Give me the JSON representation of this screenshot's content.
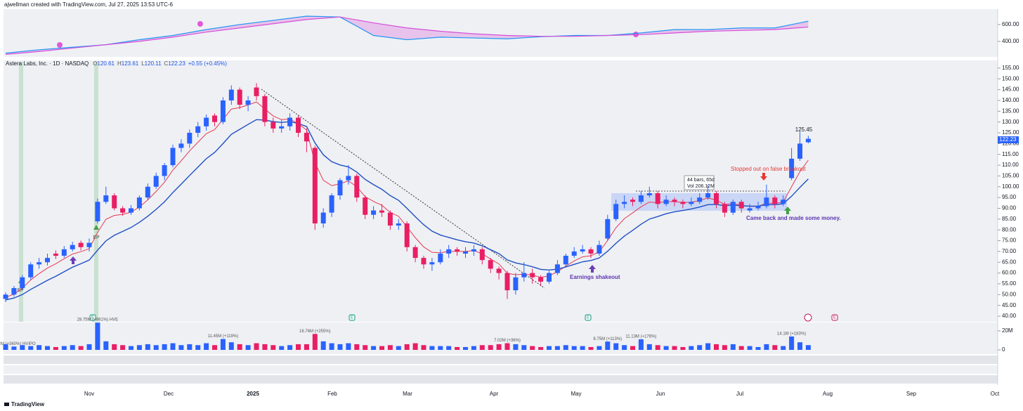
{
  "header": {
    "credit": "ajwellman created with TradingView.com, Jul 27, 2025 13:53 UTC-6",
    "legend": [
      "O",
      "120.61",
      "H",
      "123.61",
      "L",
      "120.11",
      "C",
      "122.23",
      "+0.55 (+0.45%)"
    ]
  },
  "footer": {
    "logo": "TradingView"
  },
  "chart_data": [
    {
      "type": "line",
      "series": [
        {
          "color": "#2196f3",
          "values": [
            260,
            300,
            330,
            360,
            420,
            470,
            540,
            600,
            650,
            700,
            690,
            470,
            420,
            450,
            440,
            430,
            455,
            470,
            470,
            500,
            540,
            540,
            560,
            560,
            640
          ]
        },
        {
          "color": "#d64fd8",
          "values": [
            245,
            280,
            320,
            360,
            400,
            450,
            510,
            560,
            610,
            660,
            690,
            620,
            560,
            520,
            490,
            470,
            460,
            460,
            470,
            480,
            500,
            520,
            530,
            540,
            570
          ]
        }
      ],
      "ylim": [
        240,
        775
      ],
      "yticks": [
        {
          "value": 600,
          "label": "600.00"
        },
        {
          "value": 400,
          "label": "400.00"
        }
      ]
    },
    {
      "type": "candlestick",
      "title": "Astera Labs, Inc. · 1D · NASDAQ",
      "colors": {
        "up": "#2962ff",
        "down": "#e91e63"
      },
      "ohlc": [
        [
          48,
          51,
          46.5,
          50
        ],
        [
          50,
          54,
          49,
          53
        ],
        [
          53,
          59,
          52,
          58
        ],
        [
          58,
          65,
          57,
          64
        ],
        [
          64,
          67,
          62,
          65
        ],
        [
          65,
          69,
          63.5,
          67
        ],
        [
          69,
          70.5,
          66.5,
          68
        ],
        [
          68,
          72.5,
          67,
          71
        ],
        [
          71,
          74.5,
          70,
          73
        ],
        [
          74,
          75,
          70.5,
          72
        ],
        [
          72,
          76,
          70,
          74
        ],
        [
          84,
          94.5,
          83,
          93
        ],
        [
          93,
          100,
          92,
          96
        ],
        [
          96,
          97,
          89,
          90
        ],
        [
          90,
          91,
          86.5,
          88
        ],
        [
          88,
          91.5,
          87,
          90
        ],
        [
          90,
          96,
          89,
          95
        ],
        [
          95,
          101.5,
          94,
          100
        ],
        [
          100,
          106.5,
          99,
          105
        ],
        [
          105,
          111,
          103,
          110
        ],
        [
          110,
          119.5,
          109,
          118
        ],
        [
          118,
          122,
          116,
          120
        ],
        [
          120,
          126.5,
          118,
          125
        ],
        [
          125,
          130,
          123,
          128
        ],
        [
          128,
          133.5,
          126,
          132
        ],
        [
          133,
          134,
          128,
          130
        ],
        [
          130,
          141.5,
          129,
          140
        ],
        [
          140,
          147,
          138,
          145
        ],
        [
          145,
          146,
          136,
          138
        ],
        [
          138,
          142,
          135,
          140
        ],
        [
          146,
          148,
          140,
          142
        ],
        [
          142,
          143,
          128,
          130
        ],
        [
          130,
          132,
          125,
          127
        ],
        [
          127,
          131,
          125,
          128
        ],
        [
          128,
          134,
          126,
          132
        ],
        [
          132,
          133,
          123,
          125
        ],
        [
          125,
          127,
          116,
          121
        ],
        [
          118,
          119,
          80,
          83
        ],
        [
          83,
          90,
          81,
          88
        ],
        [
          88,
          97,
          86,
          96
        ],
        [
          96,
          104,
          94,
          103
        ],
        [
          103,
          110,
          101,
          105
        ],
        [
          105,
          106,
          93,
          95
        ],
        [
          95,
          96,
          85,
          87
        ],
        [
          87,
          91,
          85,
          89
        ],
        [
          89,
          92,
          86,
          88
        ],
        [
          88,
          89,
          80,
          82
        ],
        [
          82,
          85,
          80,
          83
        ],
        [
          83,
          84,
          70,
          72
        ],
        [
          72,
          73,
          65,
          67
        ],
        [
          67,
          68,
          62,
          64
        ],
        [
          64,
          67,
          61,
          65
        ],
        [
          65,
          71,
          64,
          69
        ],
        [
          69,
          73,
          67,
          71
        ],
        [
          71,
          72,
          68,
          70
        ],
        [
          69,
          72,
          67,
          70
        ],
        [
          70,
          73,
          68,
          71
        ],
        [
          71,
          72,
          64,
          66
        ],
        [
          66,
          67,
          60,
          62
        ],
        [
          62,
          63,
          57,
          60
        ],
        [
          60,
          61,
          48,
          52
        ],
        [
          52,
          60,
          50,
          58
        ],
        [
          58,
          65,
          56,
          60
        ],
        [
          60,
          62,
          55,
          58
        ],
        [
          58,
          59,
          54,
          56
        ],
        [
          56,
          61,
          55,
          60
        ],
        [
          60,
          66,
          59,
          64
        ],
        [
          64,
          69,
          63,
          68
        ],
        [
          68,
          72,
          67,
          70
        ],
        [
          70,
          73,
          69,
          71
        ],
        [
          71,
          72,
          67,
          69
        ],
        [
          69,
          75,
          68,
          73
        ],
        [
          76,
          87,
          75,
          85
        ],
        [
          85,
          94,
          84,
          92
        ],
        [
          92,
          96,
          90,
          93
        ],
        [
          94,
          95,
          91,
          93
        ],
        [
          93,
          98,
          92,
          96
        ],
        [
          96,
          100,
          95,
          97
        ],
        [
          97,
          98,
          90,
          92
        ],
        [
          92,
          96,
          91,
          94
        ],
        [
          94,
          95,
          91,
          93
        ],
        [
          93,
          94,
          90,
          92
        ],
        [
          92,
          95,
          91,
          93
        ],
        [
          93,
          97,
          92,
          95
        ],
        [
          95,
          101,
          94,
          97
        ],
        [
          97,
          98,
          90,
          92
        ],
        [
          92,
          93,
          86,
          88
        ],
        [
          88,
          94,
          87,
          93
        ],
        [
          93,
          94,
          88,
          90
        ],
        [
          89,
          92,
          88,
          90
        ],
        [
          90,
          93,
          89,
          91
        ],
        [
          91,
          101,
          90,
          95
        ],
        [
          95,
          96,
          90,
          92
        ],
        [
          92,
          96,
          91,
          94
        ],
        [
          104,
          118,
          103,
          113
        ],
        [
          113,
          125.45,
          112,
          120
        ],
        [
          120.61,
          123.61,
          120.11,
          122.23
        ]
      ],
      "lines": [
        {
          "color": "#e53950",
          "values": [
            48.7,
            50.2,
            52.9,
            56.8,
            59.7,
            62.3,
            64.3,
            66.6,
            68.8,
            69.9,
            71.3,
            78.9,
            84.9,
            86.7,
            87.2,
            88.2,
            90.6,
            93.9,
            97.8,
            102.1,
            107.7,
            112,
            116.6,
            120.6,
            124.6,
            126.5,
            131.2,
            136,
            136.7,
            137.9,
            139.3,
            136,
            132.8,
            131.1,
            131.4,
            129.2,
            126.3,
            111.1,
            103,
            100.5,
            101.4,
            102.7,
            100,
            95.4,
            93.2,
            91.4,
            88.1,
            86.3,
            81.4,
            76.4,
            72.1,
            69.6,
            69.4,
            70,
            70,
            70,
            70.4,
            68.9,
            66.5,
            64.2,
            59.9,
            59.2,
            59.5,
            59,
            58,
            58.7,
            60.6,
            63.2,
            65.6,
            67.5,
            68,
            69.8,
            75.1,
            81,
            85.2,
            87.9,
            90.7,
            92.9,
            92.6,
            93.1,
            93.1,
            92.7,
            92.8,
            93.6,
            94.8,
            93.8,
            91.8,
            92.2,
            91.4,
            90.9,
            90.9,
            92.4,
            92.3,
            92.9,
            100,
            107,
            112.3
          ]
        },
        {
          "color": "#1f4fc4",
          "values": [
            47.5,
            48.4,
            50,
            52.4,
            54.5,
            56.6,
            58.5,
            60.6,
            62.7,
            64.3,
            66,
            70.6,
            74.9,
            77.5,
            79.3,
            81.1,
            83.5,
            86.3,
            89.5,
            93,
            97.3,
            101.2,
            105.2,
            109.1,
            113,
            115.9,
            120,
            124.3,
            126.6,
            128.9,
            131.1,
            130.9,
            130.2,
            129.8,
            130.2,
            129.3,
            127.9,
            120.3,
            114.8,
            111.6,
            110.1,
            109.2,
            106.8,
            103.4,
            101,
            98.8,
            95.9,
            93.7,
            90,
            86.1,
            82.4,
            79.4,
            77.6,
            76.5,
            75.4,
            74.5,
            73.9,
            72.6,
            70.8,
            69,
            66.1,
            64.7,
            63.9,
            62.9,
            61.7,
            61.4,
            61.8,
            62.8,
            64,
            65.2,
            65.8,
            67,
            70.1,
            73.8,
            77.1,
            79.8,
            82.6,
            85,
            86.2,
            87.5,
            88.4,
            89,
            89.7,
            90.6,
            91.7,
            91.8,
            91.2,
            91.5,
            91.2,
            91,
            91,
            91.7,
            91.7,
            92.1,
            95.6,
            99.7,
            103.6
          ]
        }
      ],
      "ylim": [
        37.4,
        157.9
      ],
      "yticks": [
        {
          "value": 40,
          "label": "40.00"
        },
        {
          "value": 45,
          "label": "45.00"
        },
        {
          "value": 50,
          "label": "50.00"
        },
        {
          "value": 55,
          "label": "55.00"
        },
        {
          "value": 60,
          "label": "60.00"
        },
        {
          "value": 65,
          "label": "65.00"
        },
        {
          "value": 70,
          "label": "70.00"
        },
        {
          "value": 75,
          "label": "75.00"
        },
        {
          "value": 80,
          "label": "80.00"
        },
        {
          "value": 85,
          "label": "85.00"
        },
        {
          "value": 90,
          "label": "90.00"
        },
        {
          "value": 95,
          "label": "95.00"
        },
        {
          "value": 100,
          "label": "100.00"
        },
        {
          "value": 105,
          "label": "105.00"
        },
        {
          "value": 110,
          "label": "110.00"
        },
        {
          "value": 115,
          "label": "115.00"
        },
        {
          "value": 120,
          "label": "120.00"
        },
        {
          "value": 125,
          "label": "125.00"
        },
        {
          "value": 130,
          "label": "130.00"
        },
        {
          "value": 135,
          "label": "135.00"
        },
        {
          "value": 140,
          "label": "140.00"
        },
        {
          "value": 145,
          "label": "145.00"
        },
        {
          "value": 150,
          "label": "150.00"
        },
        {
          "value": 155,
          "label": "155.00"
        }
      ],
      "x_labels": [
        "Nov",
        "Dec",
        "2025",
        "Feb",
        "Mar",
        "Apr",
        "May",
        "Jun",
        "Jul",
        "Aug",
        "Sep",
        "Oct"
      ],
      "annotations": {
        "high": "125.45",
        "last": "122.23",
        "stopped": "Stopped out on false breakout",
        "came_back": "Came back and made some money.",
        "shakeout": "Earnings shakeout",
        "bars": "44 bars, 65d",
        "vol": "Vol 206.12M",
        "ep": [
          "EP",
          "EP"
        ]
      },
      "events": [
        "E",
        "E",
        "E",
        "E"
      ]
    },
    {
      "type": "bar",
      "values": [
        6,
        3.52,
        5,
        4,
        5,
        4,
        3,
        4,
        5,
        4,
        6,
        28.75,
        9,
        6,
        5,
        4,
        5,
        6,
        5,
        6,
        7,
        5,
        6,
        5,
        7,
        5,
        11.45,
        8,
        6,
        5,
        7,
        6,
        5,
        4,
        5,
        6,
        6,
        16.76,
        9,
        7,
        6,
        7,
        6,
        5,
        4,
        4,
        5,
        4,
        6,
        7,
        5,
        4,
        4,
        4,
        3,
        3,
        4,
        5,
        5,
        6,
        7.02,
        6,
        5,
        4,
        3,
        4,
        4,
        5,
        4,
        4,
        3,
        4,
        8.75,
        7,
        5,
        4,
        11.13,
        6,
        5,
        4,
        4,
        3,
        4,
        5,
        7,
        6,
        5,
        6,
        4,
        4,
        3,
        6,
        5,
        4,
        14.1,
        8,
        5
      ],
      "value_labels": [
        null,
        "3.52M (+360%) HVIPO",
        null,
        null,
        null,
        null,
        null,
        null,
        null,
        null,
        null,
        "28.75M (+981%) HVE",
        null,
        null,
        null,
        null,
        null,
        null,
        null,
        null,
        null,
        null,
        null,
        null,
        null,
        null,
        "11.45M (+119%)",
        null,
        null,
        null,
        null,
        null,
        null,
        null,
        null,
        null,
        null,
        "16.76M (+255%)",
        null,
        null,
        null,
        null,
        null,
        null,
        null,
        null,
        null,
        null,
        null,
        null,
        null,
        null,
        null,
        null,
        null,
        null,
        null,
        null,
        null,
        null,
        "7.02M (+36%)",
        null,
        null,
        null,
        null,
        null,
        null,
        null,
        null,
        null,
        null,
        null,
        "8.75M (+113%)",
        null,
        null,
        null,
        "11.13M (+176%)",
        null,
        null,
        null,
        null,
        null,
        null,
        null,
        null,
        null,
        null,
        null,
        null,
        null,
        null,
        null,
        null,
        null,
        "14.1M (+183%)",
        null,
        null
      ],
      "ylim": [
        0,
        29.6
      ],
      "yticks": [
        0,
        {
          "value": 20,
          "label": "20M"
        }
      ]
    }
  ]
}
